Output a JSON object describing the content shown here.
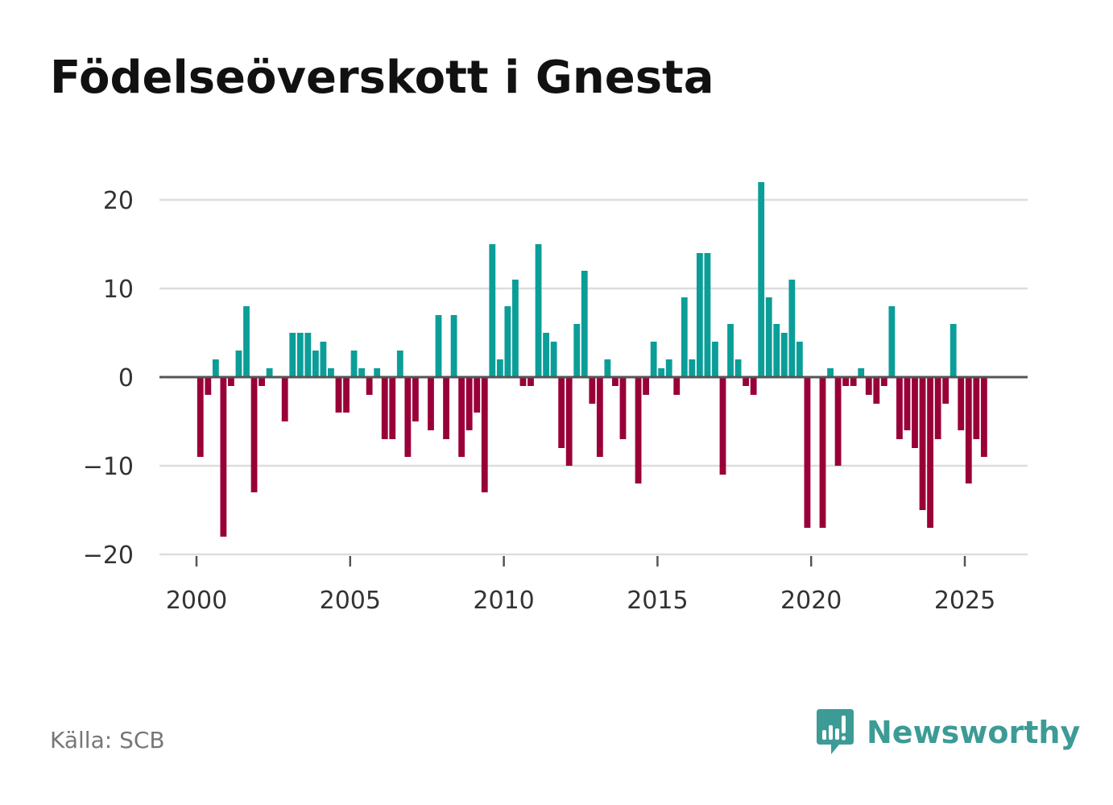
{
  "header": {
    "title": "Födelseöverskott i Gnesta"
  },
  "footer": {
    "source": "Källa: SCB",
    "brand": "Newsworthy"
  },
  "colors": {
    "positive": "#0b9e98",
    "negative": "#990038",
    "grid": "#dddddd",
    "zero_line": "#555555",
    "brand": "#3d9b96"
  },
  "chart_data": {
    "type": "bar",
    "title": "Födelseöverskott i Gnesta",
    "xlabel": "",
    "ylabel": "",
    "ylim": [
      -20,
      22
    ],
    "xlim": [
      1999.6,
      2027.1
    ],
    "yticks": [
      20,
      10,
      0,
      -10,
      -20
    ],
    "ytick_labels": [
      "20",
      "10",
      "0",
      "−10",
      "−20"
    ],
    "xticks": [
      2000,
      2005,
      2010,
      2015,
      2020,
      2025
    ],
    "xtick_labels": [
      "2000",
      "2005",
      "2010",
      "2015",
      "2020",
      "2025"
    ],
    "grid": true,
    "legend": "none",
    "start": 2000,
    "step": 0.25,
    "values": [
      -9,
      -2,
      2,
      -18,
      -1,
      3,
      8,
      -13,
      -1,
      1,
      0,
      -5,
      5,
      5,
      5,
      3,
      4,
      1,
      -4,
      -4,
      3,
      1,
      -2,
      1,
      -7,
      -7,
      3,
      -9,
      -5,
      0,
      -6,
      7,
      -7,
      7,
      -9,
      -6,
      -4,
      -13,
      15,
      2,
      8,
      11,
      -1,
      -1,
      15,
      5,
      4,
      -8,
      -10,
      6,
      12,
      -3,
      -9,
      2,
      -1,
      -7,
      0,
      -12,
      -2,
      4,
      1,
      2,
      -2,
      9,
      2,
      14,
      14,
      4,
      -11,
      6,
      2,
      -1,
      -2,
      22,
      9,
      6,
      5,
      11,
      4,
      -17,
      0,
      -17,
      1,
      -10,
      -1,
      -1,
      1,
      -2,
      -3,
      -1,
      8,
      -7,
      -6,
      -8,
      -15,
      -17,
      -7,
      -3,
      6,
      -6,
      -12,
      -7,
      -9
    ]
  }
}
